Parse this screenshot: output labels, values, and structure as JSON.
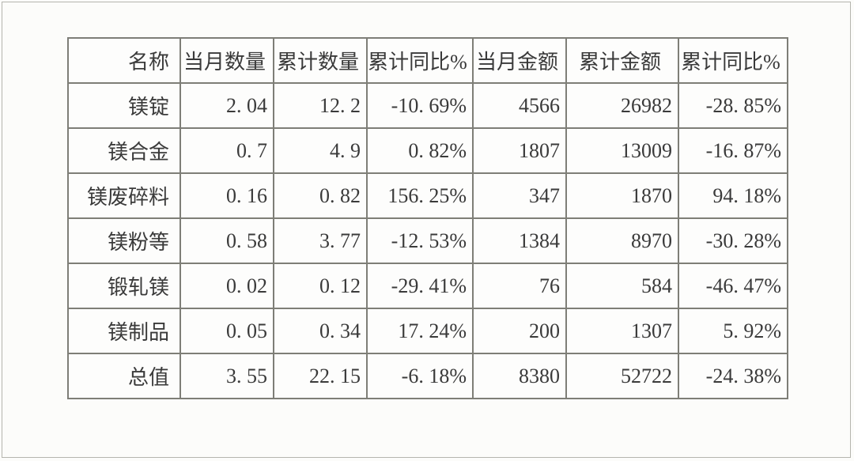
{
  "page": {
    "background_color": "#fcfcfa",
    "frame_color": "#b5b5ae",
    "grid_color": "#7e7e77",
    "text_color": "#3a3a3a"
  },
  "chart_data": {
    "type": "table",
    "title": "",
    "columns": [
      "名称",
      "当月数量",
      "累计数量",
      "累计同比%",
      "当月金额",
      "累计金额",
      "累计同比%"
    ],
    "rows": [
      [
        "镁锭",
        "2.04",
        "12.2",
        "-10.69%",
        "4566",
        "26982",
        "-28.85%"
      ],
      [
        "镁合金",
        "0.7",
        "4.9",
        "0.82%",
        "1807",
        "13009",
        "-16.87%"
      ],
      [
        "镁废碎料",
        "0.16",
        "0.82",
        "156.25%",
        "347",
        "1870",
        "94.18%"
      ],
      [
        "镁粉等",
        "0.58",
        "3.77",
        "-12.53%",
        "1384",
        "8970",
        "-30.28%"
      ],
      [
        "锻轧镁",
        "0.02",
        "0.12",
        "-29.41%",
        "76",
        "584",
        "-46.47%"
      ],
      [
        "镁制品",
        "0.05",
        "0.34",
        "17.24%",
        "200",
        "1307",
        "5.92%"
      ],
      [
        "总值",
        "3.55",
        "22.15",
        "-6.18%",
        "8380",
        "52722",
        "-24.38%"
      ]
    ]
  }
}
